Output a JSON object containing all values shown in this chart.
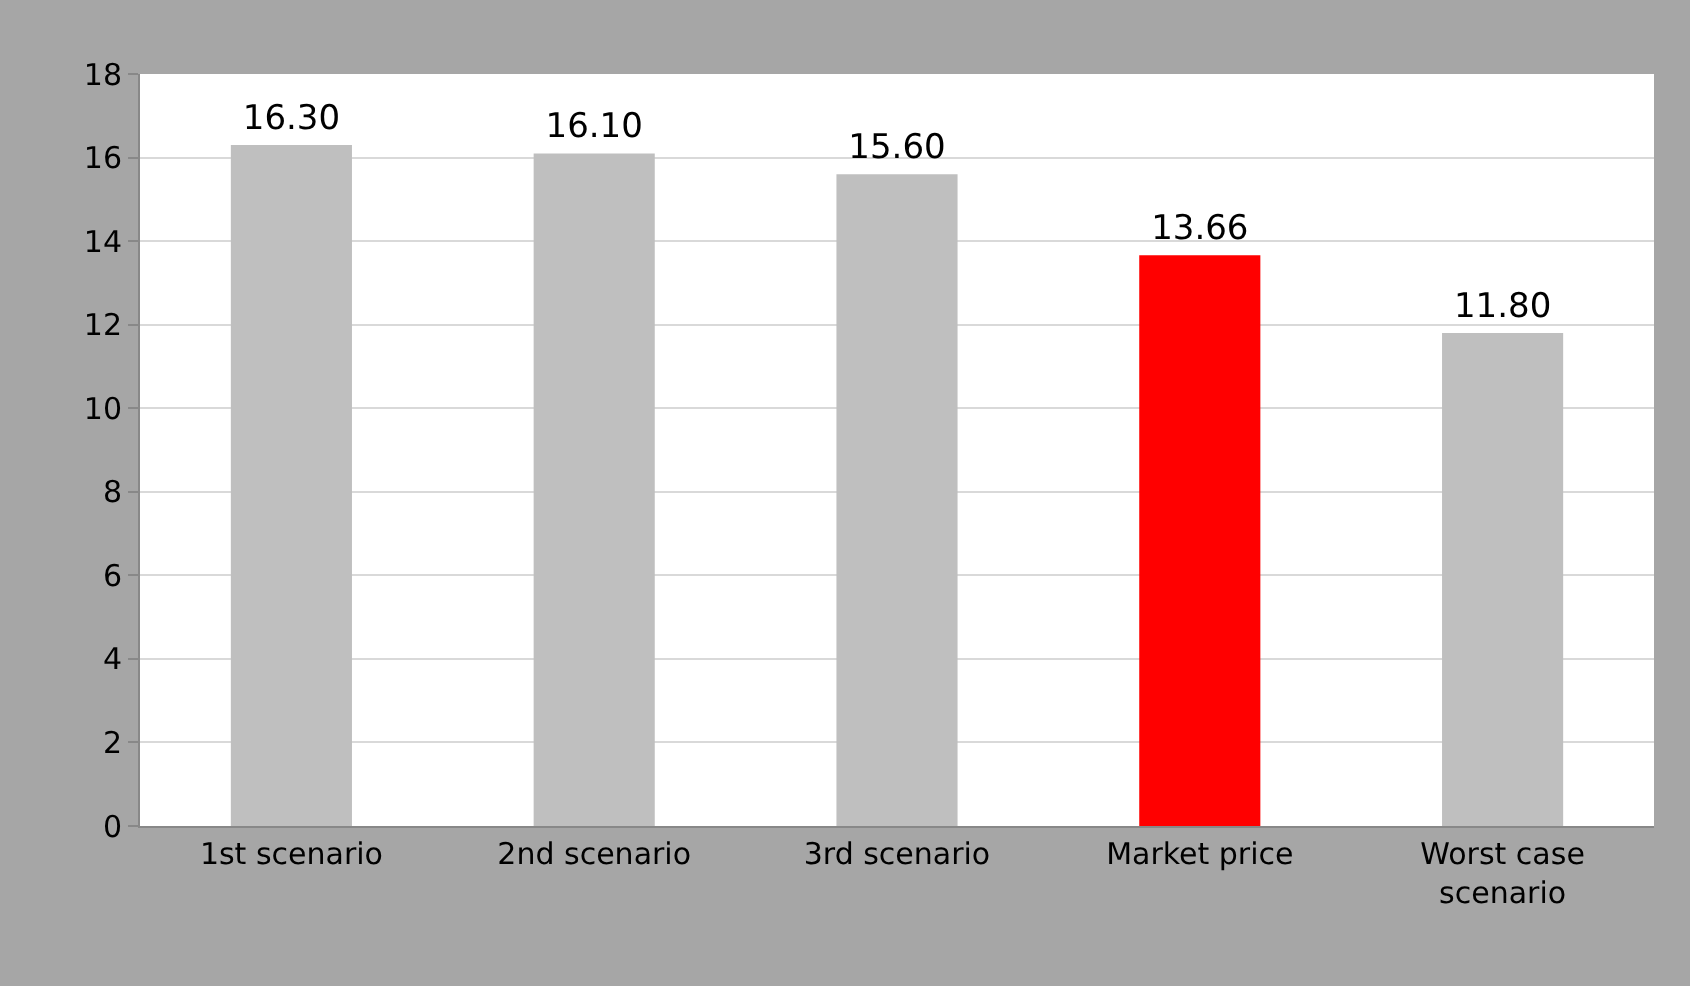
{
  "chart_data": {
    "type": "bar",
    "categories": [
      "1st scenario",
      "2nd scenario",
      "3rd scenario",
      "Market price",
      "Worst case\nscenario"
    ],
    "values": [
      16.3,
      16.1,
      15.6,
      13.66,
      11.8
    ],
    "colors": [
      "#bfbfbf",
      "#bfbfbf",
      "#bfbfbf",
      "#ff0000",
      "#bfbfbf"
    ],
    "value_labels": [
      "16.30",
      "16.10",
      "15.60",
      "13.66",
      "11.80"
    ],
    "ylim": [
      0,
      18
    ],
    "yticks": [
      0,
      2,
      4,
      6,
      8,
      10,
      12,
      14,
      16,
      18
    ],
    "grid": "y",
    "legend": false
  }
}
